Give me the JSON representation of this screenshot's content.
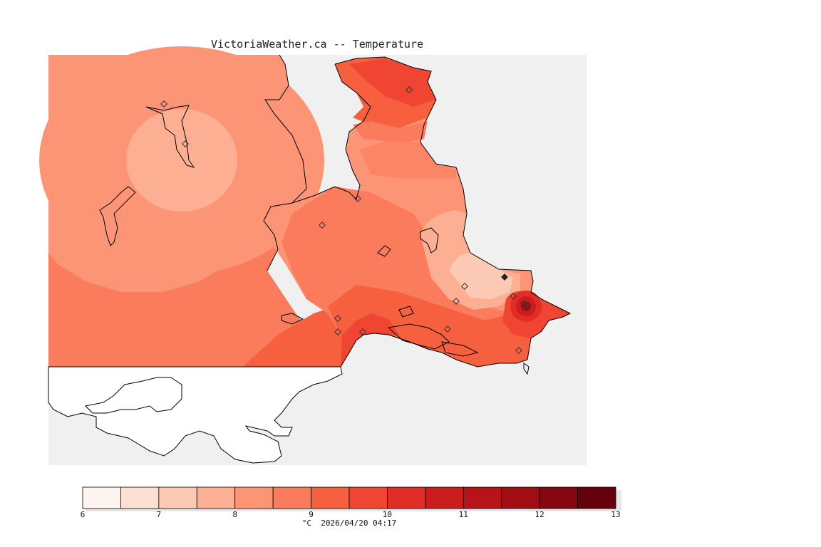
{
  "map": {
    "title": "VictoriaWeather.ca -- Temperature",
    "variable": "Temperature",
    "unit_label": "°C",
    "timestamp": "2026/04/20 04:17",
    "land_color": "#ffffff",
    "no_data_color": "#f0f0f0",
    "coast_color": "#000000"
  },
  "legend": {
    "min": 6,
    "max": 13,
    "step": 0.5,
    "tick_labels": [
      "6",
      "7",
      "8",
      "9",
      "10",
      "11",
      "12",
      "13"
    ],
    "colors": [
      "#fff5f0",
      "#fee0d2",
      "#fcc9b4",
      "#fcaf93",
      "#fc9576",
      "#fb7c5c",
      "#f6603f",
      "#ef4532",
      "#e02d27",
      "#cb1d1e",
      "#b71318",
      "#a00e14",
      "#850811",
      "#67000d"
    ]
  },
  "stations_count_note": null
}
